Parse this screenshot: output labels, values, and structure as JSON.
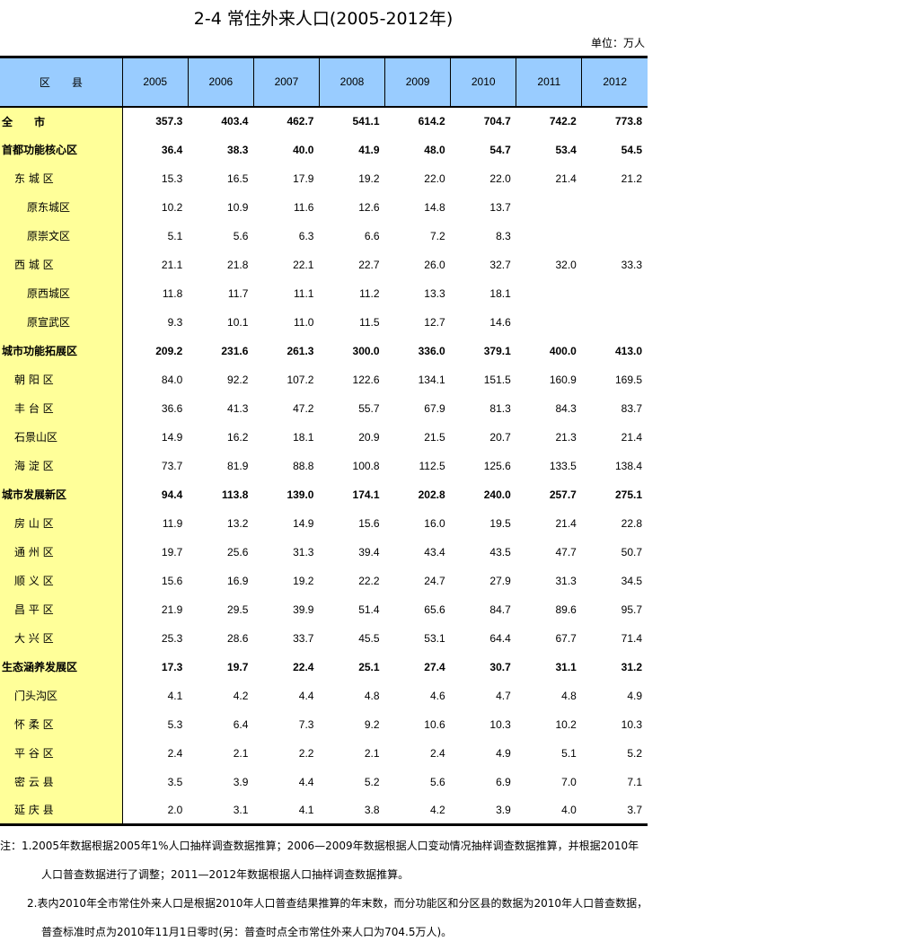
{
  "title": "2-4 常住外来人口(2005-2012年)",
  "unit": "单位：万人",
  "header": {
    "first": "区　　县",
    "years": [
      "2005",
      "2006",
      "2007",
      "2008",
      "2009",
      "2010",
      "2011",
      "2012"
    ]
  },
  "colors": {
    "header_bg": "#99ccff",
    "name_col_bg": "#ffff99"
  },
  "rows": [
    {
      "name": "全　　市",
      "level": 0,
      "values": [
        "357.3",
        "403.4",
        "462.7",
        "541.1",
        "614.2",
        "704.7",
        "742.2",
        "773.8"
      ]
    },
    {
      "name": "首都功能核心区",
      "level": 0,
      "values": [
        "36.4",
        "38.3",
        "40.0",
        "41.9",
        "48.0",
        "54.7",
        "53.4",
        "54.5"
      ]
    },
    {
      "name": "东 城 区",
      "level": 1,
      "values": [
        "15.3",
        "16.5",
        "17.9",
        "19.2",
        "22.0",
        "22.0",
        "21.4",
        "21.2"
      ]
    },
    {
      "name": "原东城区",
      "level": 2,
      "values": [
        "10.2",
        "10.9",
        "11.6",
        "12.6",
        "14.8",
        "13.7",
        "",
        ""
      ]
    },
    {
      "name": "原崇文区",
      "level": 2,
      "values": [
        "5.1",
        "5.6",
        "6.3",
        "6.6",
        "7.2",
        "8.3",
        "",
        ""
      ]
    },
    {
      "name": "西 城 区",
      "level": 1,
      "values": [
        "21.1",
        "21.8",
        "22.1",
        "22.7",
        "26.0",
        "32.7",
        "32.0",
        "33.3"
      ]
    },
    {
      "name": "原西城区",
      "level": 2,
      "values": [
        "11.8",
        "11.7",
        "11.1",
        "11.2",
        "13.3",
        "18.1",
        "",
        ""
      ]
    },
    {
      "name": "原宣武区",
      "level": 2,
      "values": [
        "9.3",
        "10.1",
        "11.0",
        "11.5",
        "12.7",
        "14.6",
        "",
        ""
      ]
    },
    {
      "name": "城市功能拓展区",
      "level": 0,
      "values": [
        "209.2",
        "231.6",
        "261.3",
        "300.0",
        "336.0",
        "379.1",
        "400.0",
        "413.0"
      ]
    },
    {
      "name": "朝 阳 区",
      "level": 1,
      "values": [
        "84.0",
        "92.2",
        "107.2",
        "122.6",
        "134.1",
        "151.5",
        "160.9",
        "169.5"
      ]
    },
    {
      "name": "丰 台 区",
      "level": 1,
      "values": [
        "36.6",
        "41.3",
        "47.2",
        "55.7",
        "67.9",
        "81.3",
        "84.3",
        "83.7"
      ]
    },
    {
      "name": "石景山区",
      "level": 1,
      "values": [
        "14.9",
        "16.2",
        "18.1",
        "20.9",
        "21.5",
        "20.7",
        "21.3",
        "21.4"
      ]
    },
    {
      "name": "海 淀 区",
      "level": 1,
      "values": [
        "73.7",
        "81.9",
        "88.8",
        "100.8",
        "112.5",
        "125.6",
        "133.5",
        "138.4"
      ]
    },
    {
      "name": "城市发展新区",
      "level": 0,
      "values": [
        "94.4",
        "113.8",
        "139.0",
        "174.1",
        "202.8",
        "240.0",
        "257.7",
        "275.1"
      ]
    },
    {
      "name": "房 山 区",
      "level": 1,
      "values": [
        "11.9",
        "13.2",
        "14.9",
        "15.6",
        "16.0",
        "19.5",
        "21.4",
        "22.8"
      ]
    },
    {
      "name": "通 州 区",
      "level": 1,
      "values": [
        "19.7",
        "25.6",
        "31.3",
        "39.4",
        "43.4",
        "43.5",
        "47.7",
        "50.7"
      ]
    },
    {
      "name": "顺 义 区",
      "level": 1,
      "values": [
        "15.6",
        "16.9",
        "19.2",
        "22.2",
        "24.7",
        "27.9",
        "31.3",
        "34.5"
      ]
    },
    {
      "name": "昌 平 区",
      "level": 1,
      "values": [
        "21.9",
        "29.5",
        "39.9",
        "51.4",
        "65.6",
        "84.7",
        "89.6",
        "95.7"
      ]
    },
    {
      "name": "大 兴 区",
      "level": 1,
      "values": [
        "25.3",
        "28.6",
        "33.7",
        "45.5",
        "53.1",
        "64.4",
        "67.7",
        "71.4"
      ]
    },
    {
      "name": "生态涵养发展区",
      "level": 0,
      "values": [
        "17.3",
        "19.7",
        "22.4",
        "25.1",
        "27.4",
        "30.7",
        "31.1",
        "31.2"
      ]
    },
    {
      "name": "门头沟区",
      "level": 1,
      "values": [
        "4.1",
        "4.2",
        "4.4",
        "4.8",
        "4.6",
        "4.7",
        "4.8",
        "4.9"
      ]
    },
    {
      "name": "怀 柔 区",
      "level": 1,
      "values": [
        "5.3",
        "6.4",
        "7.3",
        "9.2",
        "10.6",
        "10.3",
        "10.2",
        "10.3"
      ]
    },
    {
      "name": "平 谷 区",
      "level": 1,
      "values": [
        "2.4",
        "2.1",
        "2.2",
        "2.1",
        "2.4",
        "4.9",
        "5.1",
        "5.2"
      ]
    },
    {
      "name": "密 云 县",
      "level": 1,
      "values": [
        "3.5",
        "3.9",
        "4.4",
        "5.2",
        "5.6",
        "6.9",
        "7.0",
        "7.1"
      ]
    },
    {
      "name": "延 庆 县",
      "level": 1,
      "values": [
        "2.0",
        "3.1",
        "4.1",
        "3.8",
        "4.2",
        "3.9",
        "4.0",
        "3.7"
      ]
    }
  ],
  "notes": [
    "注：1.2005年数据根据2005年1%人口抽样调查数据推算；2006—2009年数据根据人口变动情况抽样调查数据推算，并根据2010年",
    "人口普查数据进行了调整；2011—2012年数据根据人口抽样调查数据推算。",
    "2.表内2010年全市常住外来人口是根据2010年人口普查结果推算的年末数，而分功能区和分区县的数据为2010年人口普查数据，",
    "普查标准时点为2010年11月1日零时(另：普查时点全市常住外来人口为704.5万人)。"
  ]
}
